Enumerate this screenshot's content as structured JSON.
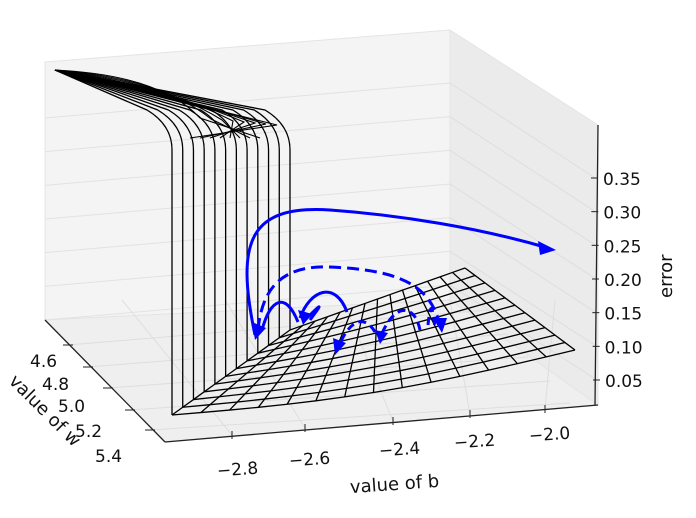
{
  "chart_data": {
    "type": "surface3d",
    "title": "",
    "xlabel": "value of b",
    "ylabel": "value of w",
    "zlabel": "error",
    "x_ticks": [
      "−2.8",
      "−2.6",
      "−2.4",
      "−2.2",
      "−2.0"
    ],
    "y_ticks": [
      "4.6",
      "4.8",
      "5.0",
      "5.2",
      "5.4"
    ],
    "z_ticks": [
      "0.05",
      "0.10",
      "0.15",
      "0.20",
      "0.25",
      "0.30",
      "0.35"
    ],
    "xlim": [
      -2.9,
      -1.95
    ],
    "ylim": [
      4.5,
      5.45
    ],
    "zlim": [
      0.02,
      0.4
    ],
    "grid": true,
    "surface": {
      "style": "wireframe",
      "color": "#000000",
      "description_shape": "steep wall at low b, nearly flat sloped floor elsewhere"
    },
    "overlays": [
      {
        "style": "solid",
        "color": "#0000ff",
        "kind": "arrows"
      },
      {
        "style": "dashed",
        "color": "#0000ff",
        "kind": "arrows"
      }
    ],
    "colors": {
      "pane": "#f2f2f2",
      "grid": "#e0e0e0",
      "arrows": "#0000ff"
    }
  }
}
